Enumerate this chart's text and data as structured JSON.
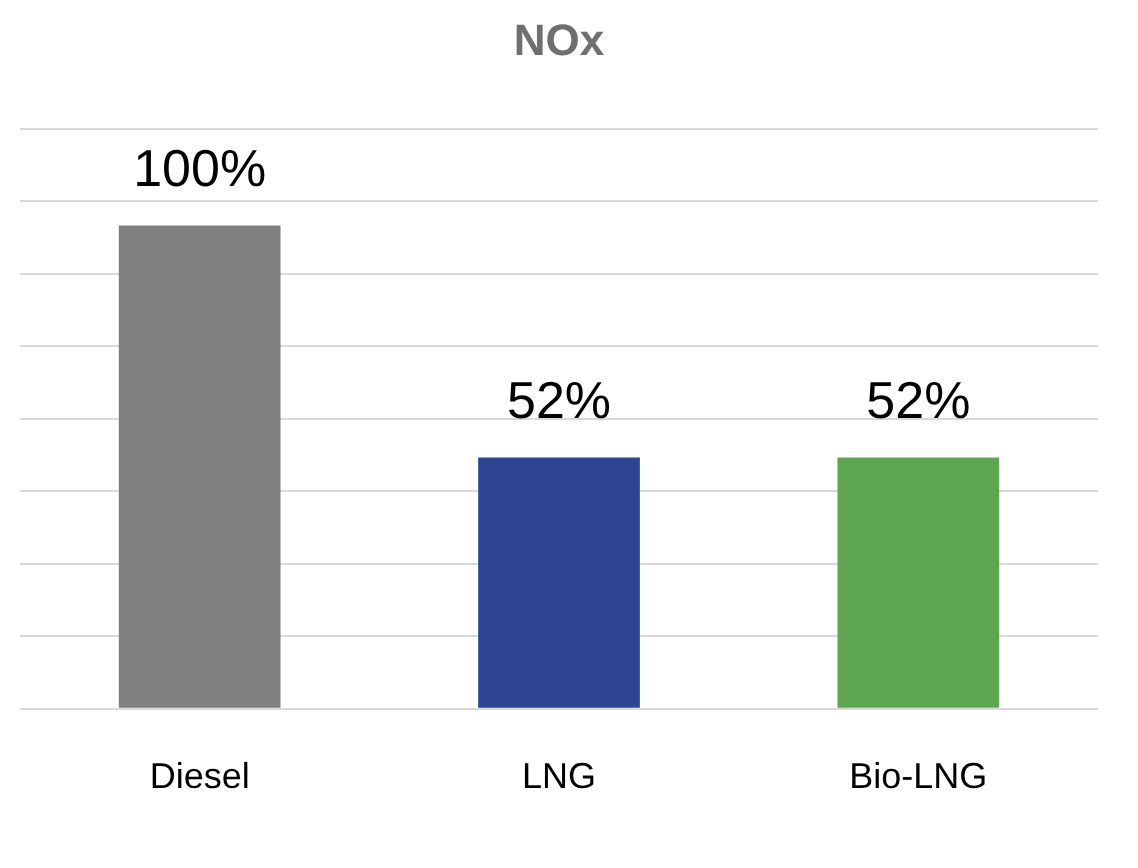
{
  "chart_data": {
    "type": "bar",
    "title": "NOx",
    "categories": [
      "Diesel",
      "LNG",
      "Bio-LNG"
    ],
    "values": [
      100,
      52,
      52
    ],
    "colors": [
      "#7f7f7f",
      "#2e4591",
      "#5ea552"
    ],
    "value_labels": [
      "100%",
      "52%",
      "52%"
    ],
    "ylim": [
      0,
      120
    ],
    "yticks": [
      {
        "value": 0,
        "label": null
      },
      {
        "value": 15,
        "label": null
      },
      {
        "value": 30,
        "label": null
      },
      {
        "value": 45,
        "label": null
      },
      {
        "value": 60,
        "label": null
      },
      {
        "value": 75,
        "label": null
      },
      {
        "value": 90,
        "label": null
      },
      {
        "value": 105,
        "label": null
      },
      {
        "value": 120,
        "label": null
      }
    ],
    "grid": "y",
    "tick_labels": "x",
    "legend": false
  }
}
